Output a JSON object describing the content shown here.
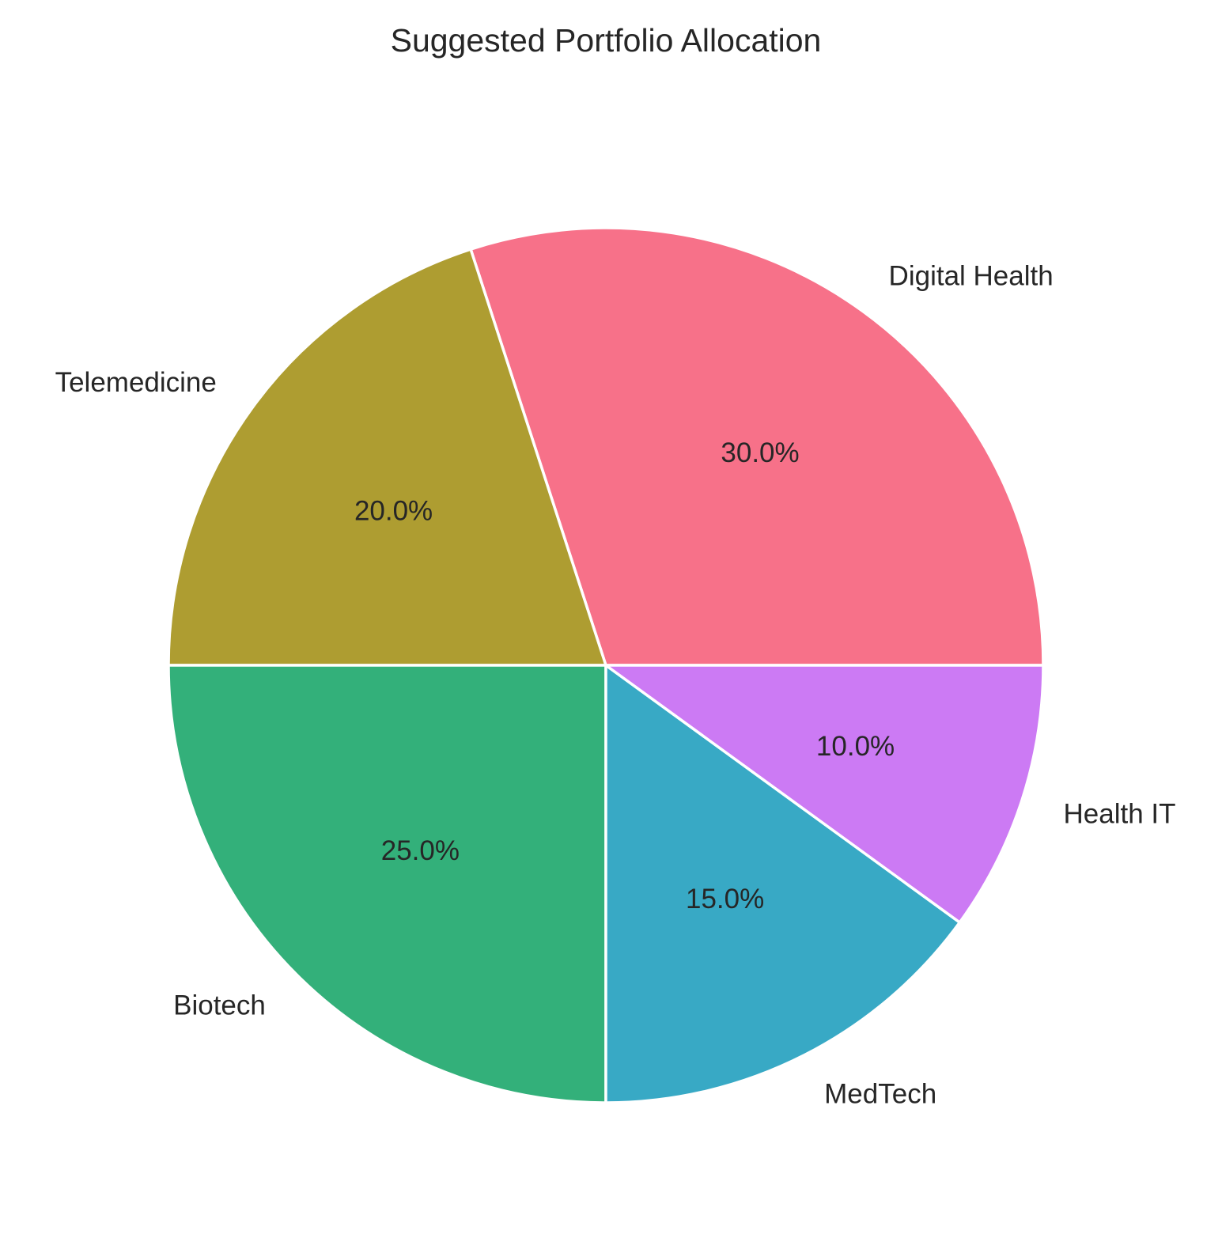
{
  "chart_data": {
    "type": "pie",
    "title": "Suggested Portfolio Allocation",
    "start_angle_deg": 0,
    "direction": "counterclockwise",
    "slices": [
      {
        "label": "Digital Health",
        "value": 30,
        "pct_label": "30.0%",
        "color": "#f77189"
      },
      {
        "label": "Telemedicine",
        "value": 20,
        "pct_label": "20.0%",
        "color": "#ae9d31"
      },
      {
        "label": "Biotech",
        "value": 25,
        "pct_label": "25.0%",
        "color": "#33b07a"
      },
      {
        "label": "MedTech",
        "value": 15,
        "pct_label": "15.0%",
        "color": "#38a9c5"
      },
      {
        "label": "Health IT",
        "value": 10,
        "pct_label": "10.0%",
        "color": "#cc7af4"
      }
    ]
  }
}
